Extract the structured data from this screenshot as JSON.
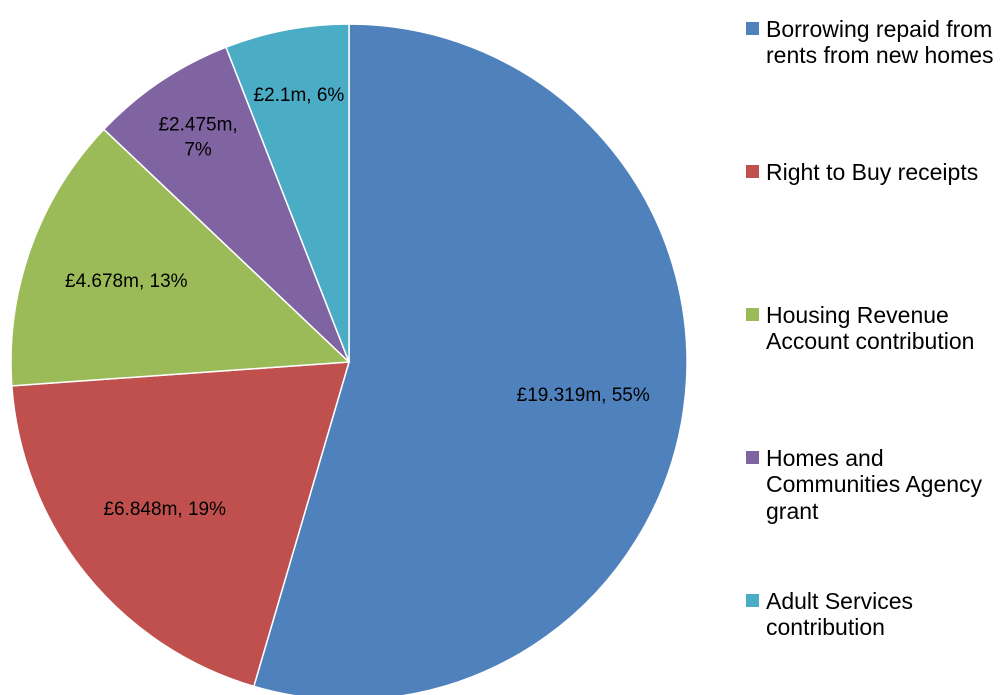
{
  "chart_data": {
    "type": "pie",
    "categories": [
      "Borrowing repaid from rents from new homes",
      "Right to Buy receipts",
      "Housing Revenue Account contribution",
      "Homes and Communities Agency grant",
      "Adult Services contribution"
    ],
    "values": [
      19.319,
      6.848,
      4.678,
      2.475,
      2.1
    ],
    "value_labels": [
      "£19.319m, 55%",
      "£6.848m, 19%",
      "£4.678m, 13%",
      "£2.475m, 7%",
      "£2.1m, 6%"
    ],
    "colors": [
      "#4f81bd",
      "#c0504d",
      "#9bbb59",
      "#8064a2",
      "#4bacc6"
    ],
    "legend": "right"
  }
}
